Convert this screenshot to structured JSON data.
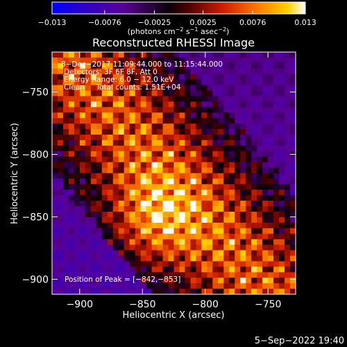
{
  "chart_data": {
    "type": "heatmap",
    "title": "Reconstructed RHESSI Image",
    "xlabel": "Heliocentric X (arcsec)",
    "ylabel": "Heliocentric Y (arcsec)",
    "xlim": [
      -922,
      -728
    ],
    "ylim": [
      -912,
      -718
    ],
    "x_ticks": [
      -900,
      -850,
      -800,
      -750
    ],
    "x_tick_labels": [
      "−900",
      "−850",
      "−800",
      "−750"
    ],
    "y_ticks": [
      -900,
      -850,
      -800,
      -750
    ],
    "y_tick_labels": [
      "−900",
      "−850",
      "−800",
      "−750"
    ],
    "colorbar": {
      "range": [
        -0.013,
        0.013
      ],
      "ticks": [
        -0.013,
        -0.0076,
        -0.0025,
        0.0025,
        0.0076,
        0.013
      ],
      "tick_labels": [
        "−0.013",
        "−0.0076",
        "−0.0025",
        "0.0025",
        "0.0076",
        "0.013"
      ],
      "unit_prefix": "(photons cm",
      "unit_sup1": "−2",
      "unit_mid1": " s",
      "unit_sup2": "−1",
      "unit_mid2": " asec",
      "unit_sup3": "−2",
      "unit_suffix": ")",
      "colors": [
        "#0000ff",
        "#2a00c8",
        "#5a0096",
        "#000000",
        "#7a0000",
        "#d22000",
        "#ff8000",
        "#ffd000",
        "#ffffff"
      ]
    },
    "peak_position": [
      -842,
      -853
    ],
    "annotations": [
      "8−Dec−2017 11:09:44.000 to 11:15:44.000",
      "Detectors: 3F 6F 8F, Att 0",
      "Energy Range: 6.0 − 12.0 keV",
      "Clean     Total counts: 1.51E+04"
    ],
    "peak_label": "Position of Peak = [−842,−853]",
    "grid": false
  },
  "footer": {
    "timestamp": "5−Sep−2022 19:40"
  }
}
